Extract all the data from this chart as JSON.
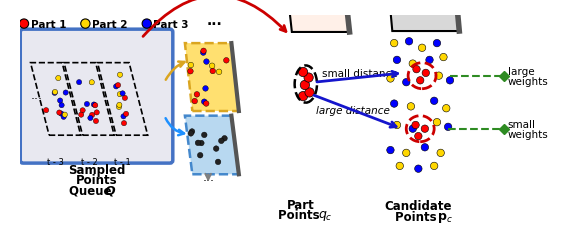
{
  "legend_items": [
    {
      "label": "Part 1",
      "color": "#FF0000"
    },
    {
      "label": "Part 2",
      "color": "#FFD700"
    },
    {
      "label": "Part 3",
      "color": "#0000FF"
    }
  ],
  "queue_box_color": "#4472C4",
  "queue_fill_color": "#E8E8F0",
  "timestamps": [
    "t - 3",
    "t - 2",
    "t - 1"
  ],
  "arrow_red_color": "#CC0000",
  "arrow_yellow_color": "#DAA520",
  "arrow_cyan_color": "#1E90FF",
  "arrow_gray_color": "#808080",
  "arrow_blue_color": "#1515CC",
  "dashed_green_color": "#2E8B22",
  "diamond_color": "#2E8B22",
  "plane_face_color": "#FFF0E8",
  "plane_edge_color": "#333333",
  "candidate_face_color": "#D8D8D8",
  "candidate_edge_color": "#333333",
  "dashed_circle_color": "#CC0000",
  "yellow_panel_color": "#FFE070",
  "blue_panel_color": "#B8D8F0",
  "panel_edge_color": "#DAA520",
  "blue_panel_edge_color": "#4488CC",
  "bg_color": "#FFFFFF",
  "dot_colors": [
    "#FF0000",
    "#FFD700",
    "#0000FF"
  ]
}
